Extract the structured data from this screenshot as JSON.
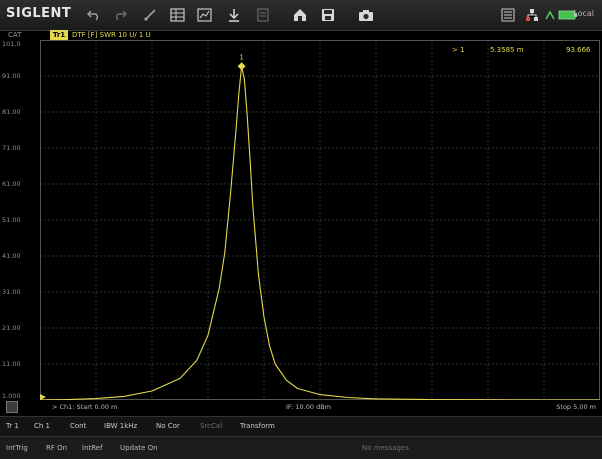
{
  "toolbar": {
    "brand": "SIGLENT",
    "icons": [
      "undo-icon",
      "redo-icon",
      "marker-tool-icon",
      "table-icon",
      "chart-icon",
      "measure-icon",
      "list-icon",
      "home-icon",
      "save-icon",
      "camera-icon",
      "menu-icon",
      "network-icon",
      "signal-icon",
      "battery-icon"
    ],
    "status": "Local"
  },
  "channel": {
    "label": "CAT"
  },
  "trace": {
    "badge": "Tr1",
    "description": "DTF [F] SWR 10 U/ 1 U",
    "color": "#e4d94a"
  },
  "y_axis": {
    "ticks": [
      "101.0",
      "91.00",
      "81.00",
      "71.00",
      "61.00",
      "51.00",
      "41.00",
      "31.00",
      "21.00",
      "11.00",
      "1.000"
    ]
  },
  "marker": {
    "label": "1",
    "readout_label": "> 1",
    "readout_x": "5.3585 m",
    "readout_y": "93.666"
  },
  "axis_bar": {
    "start": "> Ch1: Start 0.00 m",
    "power": "IF: 10.00 dBm",
    "stop": "Stop 5.00 m"
  },
  "status_row1": [
    "Tr 1",
    "Ch 1",
    "Cont",
    "IBW 1kHz",
    "No Cor",
    "SrcCal",
    "Transform"
  ],
  "status_row2": [
    "IntTrig",
    "RF On",
    "IntRef",
    "Update On",
    "No messages"
  ],
  "chart_data": {
    "type": "line",
    "title": "",
    "xlabel": "",
    "ylabel": "",
    "xlim": [
      0,
      10
    ],
    "ylim": [
      1.0,
      101.0
    ],
    "grid": true,
    "series": [
      {
        "color": "#e4d94a",
        "x": [
          0.0,
          0.5,
          1.0,
          1.5,
          2.0,
          2.5,
          2.8,
          3.0,
          3.2,
          3.3,
          3.4,
          3.5,
          3.55,
          3.6,
          3.65,
          3.7,
          3.75,
          3.8,
          3.9,
          4.0,
          4.1,
          4.2,
          4.4,
          4.6,
          5.0,
          5.5,
          6.0,
          7.0,
          8.0,
          9.0,
          10.0
        ],
        "y": [
          1.0,
          1.1,
          1.4,
          2.0,
          3.5,
          7.0,
          12.0,
          19.0,
          32.0,
          42.0,
          58.0,
          76.0,
          86.0,
          93.7,
          90.0,
          80.0,
          68.0,
          55.0,
          36.0,
          24.0,
          16.0,
          11.0,
          6.5,
          4.2,
          2.5,
          1.7,
          1.3,
          1.1,
          1.05,
          1.0,
          1.0
        ]
      }
    ],
    "marker": {
      "x": 3.6,
      "y": 93.7,
      "label": "1"
    }
  }
}
